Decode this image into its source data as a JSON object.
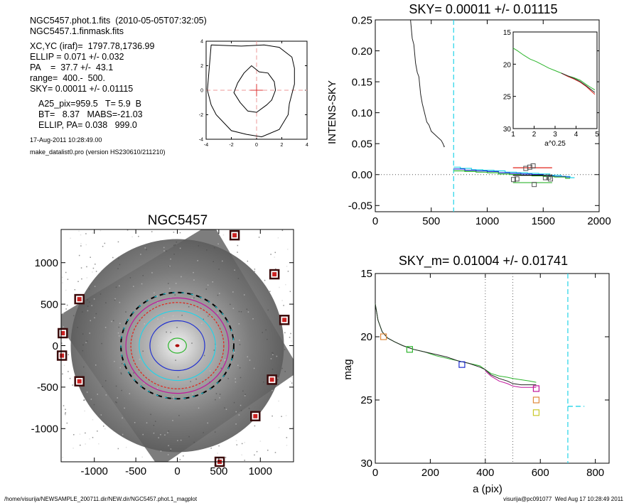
{
  "info": {
    "line1": "NGC5457.phot.1.fits  (2010-05-05T07:32:05)",
    "line2": "NGC5457.1.finmask.fits",
    "line3": "XC,YC (iraf)=  1797.78,1736.99",
    "line4": "ELLIP = 0.071 +/- 0.032",
    "line5": "PA    =  37.7 +/-  43.1",
    "line6": "range=  400.-  500.",
    "line7": "SKY= 0.00011 +/- 0.01115",
    "line8": "A25_pix=959.5   T= 5.9  B",
    "line9": "BT=   8.37   MABS=-21.03",
    "line10": "ELLIP, PA= 0.038   999.0",
    "date": "17-Aug-2011 10:28:49.00",
    "prog": "make_datalist0.pro (version HS230610/211210)"
  },
  "footer": {
    "path": "/home/visurija/NEWSAMPLE_200711.dir/NEW.dir/NGC5457.phot.1_magplot",
    "user": "visurija@pc091077  Wed Aug 17 10:28:49 2011"
  },
  "colors": {
    "cyan": "#22d3e8",
    "red": "#e2231a",
    "green": "#2db52d",
    "blue": "#1f2fd0",
    "magenta": "#c0179c",
    "orange": "#e08a3c",
    "yellow": "#c9c92c",
    "gray_dots": "#666666"
  },
  "chart_data": [
    {
      "type": "line",
      "name": "contour-inset",
      "xlim": [
        -4,
        4
      ],
      "ylim": [
        -4,
        4
      ],
      "xticks": [
        "-4",
        "-2",
        "0",
        "2",
        "4"
      ],
      "yticks": [
        "-4",
        "-2",
        "0",
        "2",
        "4"
      ],
      "outer_contour": [
        [
          -3.6,
          3.7
        ],
        [
          -1.2,
          3.6
        ],
        [
          0.6,
          3.7
        ],
        [
          1.8,
          3.5
        ],
        [
          2.8,
          2.7
        ],
        [
          3.0,
          1.8
        ],
        [
          3.0,
          0.5
        ],
        [
          2.6,
          -1.1
        ],
        [
          2.5,
          -2.0
        ],
        [
          1.8,
          -3.2
        ],
        [
          0.4,
          -3.8
        ],
        [
          -0.8,
          -3.6
        ],
        [
          -2.0,
          -3.3
        ],
        [
          -3.2,
          -2.0
        ],
        [
          -3.6,
          -1.2
        ],
        [
          -3.9,
          0
        ],
        [
          -3.6,
          3.7
        ]
      ],
      "inner_contour": [
        [
          -1.5,
          0.6
        ],
        [
          -1.0,
          1.4
        ],
        [
          -0.4,
          2.0
        ],
        [
          0.2,
          1.5
        ],
        [
          0.9,
          1.4
        ],
        [
          1.4,
          0.7
        ],
        [
          1.5,
          0
        ],
        [
          1.2,
          -0.8
        ],
        [
          0.8,
          -1.2
        ],
        [
          0,
          -1.8
        ],
        [
          -0.7,
          -1.7
        ],
        [
          -1.3,
          -1.0
        ],
        [
          -1.8,
          -0.2
        ],
        [
          -1.5,
          0.6
        ]
      ]
    },
    {
      "type": "line",
      "title": "SKY= 0.00011 +/- 0.01115",
      "xlabel": "",
      "ylabel": "INTENS-SKY",
      "xlim": [
        0,
        2000
      ],
      "ylim": [
        -0.06,
        0.25
      ],
      "xticks": [
        "0",
        "500",
        "1000",
        "1500",
        "2000"
      ],
      "yticks": [
        "-0.05",
        "0.00",
        "0.05",
        "0.10",
        "0.15",
        "0.20",
        "0.25"
      ],
      "sky_line_x": 700,
      "profile": [
        [
          315,
          0.25
        ],
        [
          330,
          0.22
        ],
        [
          345,
          0.21
        ],
        [
          360,
          0.18
        ],
        [
          375,
          0.165
        ],
        [
          390,
          0.158
        ],
        [
          405,
          0.13
        ],
        [
          420,
          0.115
        ],
        [
          440,
          0.1
        ],
        [
          460,
          0.085
        ],
        [
          480,
          0.08
        ],
        [
          500,
          0.07
        ],
        [
          530,
          0.065
        ],
        [
          560,
          0.06
        ],
        [
          590,
          0.055
        ],
        [
          605,
          0.05
        ],
        [
          615,
          0.045
        ],
        [
          620,
          0.046
        ]
      ],
      "steps_cyan": [
        [
          700,
          0.012
        ],
        [
          760,
          0.01
        ],
        [
          860,
          0.008
        ],
        [
          960,
          0.007
        ],
        [
          1060,
          0.006
        ],
        [
          1160,
          0.004
        ],
        [
          1260,
          0.003
        ],
        [
          1360,
          0.002
        ],
        [
          1460,
          0.001
        ],
        [
          1560,
          -0.001
        ],
        [
          1660,
          -0.003
        ],
        [
          1740,
          -0.005
        ]
      ],
      "steps_blue": [
        [
          700,
          0.009
        ],
        [
          800,
          0.007
        ],
        [
          900,
          0.006
        ],
        [
          1000,
          0.005
        ],
        [
          1100,
          0.003
        ],
        [
          1200,
          0.002
        ],
        [
          1300,
          0.001
        ],
        [
          1400,
          0.0
        ],
        [
          1500,
          -0.002
        ],
        [
          1600,
          -0.003
        ],
        [
          1700,
          -0.004
        ]
      ],
      "steps_green": [
        [
          700,
          0.006
        ],
        [
          800,
          0.005
        ],
        [
          900,
          0.004
        ],
        [
          1000,
          0.003
        ],
        [
          1100,
          0.001
        ],
        [
          1200,
          0.0
        ],
        [
          1300,
          -0.001
        ],
        [
          1400,
          -0.002
        ],
        [
          1500,
          -0.003
        ],
        [
          1600,
          -0.004
        ],
        [
          1700,
          -0.006
        ]
      ],
      "sky_squares": [
        [
          1235,
          -0.008
        ],
        [
          1265,
          -0.007
        ],
        [
          1345,
          0.01
        ],
        [
          1380,
          0.012
        ],
        [
          1410,
          0.014
        ],
        [
          1420,
          -0.016
        ],
        [
          1520,
          -0.005
        ],
        [
          1550,
          -0.004
        ],
        [
          1565,
          -0.007
        ]
      ],
      "sky_segments": [
        {
          "color": "red",
          "x0": 1230,
          "x1": 1580,
          "y": 0.011
        },
        {
          "color": "black",
          "x0": 1230,
          "x1": 1580,
          "y": -0.001
        },
        {
          "color": "green",
          "x0": 1230,
          "x1": 1580,
          "y": -0.013
        }
      ],
      "inset": {
        "xlabel": "a^0.25",
        "xlim": [
          1,
          5
        ],
        "ylim": [
          15,
          30
        ],
        "xticks": [
          "1",
          "2",
          "3",
          "4",
          "5"
        ],
        "yticks": [
          "15",
          "20",
          "25",
          "30"
        ],
        "green": [
          [
            1.0,
            17.5
          ],
          [
            1.2,
            17.9
          ],
          [
            1.5,
            18.6
          ],
          [
            1.8,
            19.2
          ],
          [
            2.1,
            19.6
          ],
          [
            2.4,
            20.1
          ],
          [
            2.7,
            20.6
          ],
          [
            3.0,
            21.0
          ],
          [
            3.3,
            21.4
          ],
          [
            3.6,
            21.8
          ],
          [
            3.9,
            22.1
          ],
          [
            4.2,
            22.5
          ],
          [
            4.5,
            23.2
          ],
          [
            4.7,
            23.6
          ],
          [
            4.9,
            24.0
          ]
        ],
        "red": [
          [
            3.3,
            21.4
          ],
          [
            3.6,
            21.9
          ],
          [
            3.9,
            22.3
          ],
          [
            4.2,
            22.8
          ],
          [
            4.5,
            23.5
          ],
          [
            4.7,
            24.1
          ],
          [
            4.9,
            24.7
          ]
        ],
        "dark": [
          [
            3.3,
            21.4
          ],
          [
            3.6,
            21.8
          ],
          [
            3.9,
            22.2
          ],
          [
            4.2,
            22.7
          ],
          [
            4.5,
            23.4
          ],
          [
            4.7,
            23.9
          ],
          [
            4.9,
            24.4
          ]
        ]
      }
    },
    {
      "type": "scatter",
      "title": "NGC5457",
      "xlim": [
        -1400,
        1400
      ],
      "ylim": [
        -1400,
        1400
      ],
      "xticks": [
        "-1000",
        "-500",
        "0",
        "500",
        "1000"
      ],
      "yticks": [
        "-1000",
        "-500",
        "0",
        "500",
        "1000"
      ],
      "ellipses_radius": [
        {
          "color": "green",
          "rx": 110,
          "ry": 90
        },
        {
          "color": "blue",
          "rx": 330,
          "ry": 300
        },
        {
          "color": "cyan",
          "rx": 460,
          "ry": 420
        },
        {
          "color": "red",
          "rx": 560,
          "ry": 520
        },
        {
          "color": "magenta",
          "rx": 620,
          "ry": 575
        },
        {
          "color": "dashed",
          "rx": 680,
          "ry": 640
        }
      ],
      "masked_stars": [
        [
          690,
          1330
        ],
        [
          1170,
          860
        ],
        [
          1290,
          310
        ],
        [
          1140,
          -410
        ],
        [
          940,
          -850
        ],
        [
          510,
          -1400
        ],
        [
          -1180,
          560
        ],
        [
          -1380,
          150
        ],
        [
          -1390,
          -120
        ],
        [
          -1180,
          -430
        ]
      ]
    },
    {
      "type": "line",
      "title": "SKY_m=  0.01004 +/- 0.01741",
      "xlabel": "a (pix)",
      "ylabel": "mag",
      "xlim": [
        0,
        850
      ],
      "ylim": [
        15,
        30
      ],
      "xticks": [
        "0",
        "200",
        "400",
        "600",
        "800"
      ],
      "yticks": [
        "15",
        "20",
        "25",
        "30"
      ],
      "dotted_x": [
        400,
        500
      ],
      "sky_x": 700,
      "sky_segment": {
        "x0": 700,
        "x1": 760,
        "y": 25.5
      },
      "green": [
        [
          0,
          17.4
        ],
        [
          10,
          18.7
        ],
        [
          25,
          19.6
        ],
        [
          45,
          20.1
        ],
        [
          70,
          20.4
        ],
        [
          100,
          20.7
        ],
        [
          140,
          21.0
        ],
        [
          180,
          21.2
        ],
        [
          220,
          21.5
        ],
        [
          260,
          21.7
        ],
        [
          300,
          21.9
        ],
        [
          340,
          22.1
        ],
        [
          380,
          22.3
        ],
        [
          400,
          22.6
        ],
        [
          420,
          22.9
        ],
        [
          450,
          23.1
        ],
        [
          480,
          23.2
        ],
        [
          500,
          23.3
        ],
        [
          530,
          23.4
        ],
        [
          560,
          23.5
        ],
        [
          585,
          23.6
        ]
      ],
      "black": [
        [
          0,
          17.4
        ],
        [
          10,
          18.7
        ],
        [
          25,
          19.6
        ],
        [
          45,
          20.1
        ],
        [
          70,
          20.4
        ],
        [
          100,
          20.7
        ],
        [
          140,
          21.0
        ],
        [
          180,
          21.2
        ],
        [
          220,
          21.4
        ],
        [
          260,
          21.6
        ],
        [
          300,
          21.9
        ],
        [
          340,
          22.1
        ],
        [
          380,
          22.4
        ],
        [
          400,
          22.6
        ],
        [
          420,
          23.0
        ],
        [
          450,
          23.3
        ],
        [
          480,
          23.5
        ],
        [
          500,
          23.7
        ],
        [
          530,
          23.8
        ],
        [
          560,
          23.8
        ],
        [
          585,
          23.8
        ]
      ],
      "magenta": [
        [
          400,
          22.7
        ],
        [
          420,
          23.1
        ],
        [
          450,
          23.5
        ],
        [
          480,
          23.7
        ],
        [
          500,
          23.9
        ],
        [
          530,
          24.0
        ],
        [
          560,
          24.0
        ],
        [
          585,
          24.0
        ]
      ],
      "squares": [
        {
          "color": "orange",
          "x": 30,
          "y": 20.0
        },
        {
          "color": "green",
          "x": 125,
          "y": 21.0
        },
        {
          "color": "blue",
          "x": 315,
          "y": 22.2
        },
        {
          "color": "magenta",
          "x": 585,
          "y": 24.1
        },
        {
          "color": "orange",
          "x": 585,
          "y": 25.0
        },
        {
          "color": "yellow",
          "x": 585,
          "y": 26.0
        }
      ]
    }
  ]
}
